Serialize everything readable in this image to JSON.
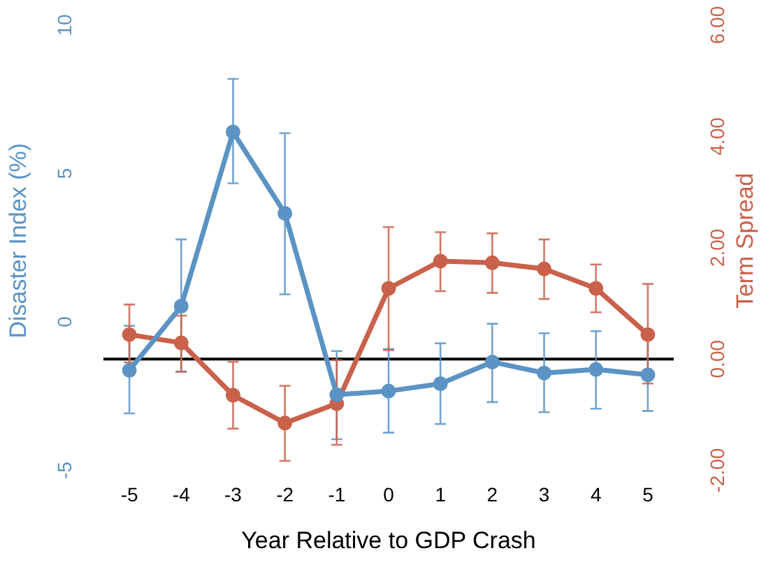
{
  "chart_data": {
    "type": "line",
    "xlabel": "Year Relative to GDP Crash",
    "ylabel": "Disaster Index (%)",
    "y2label": "Term Spread",
    "categories": [
      "-5",
      "-4",
      "-3",
      "-2",
      "-1",
      "0",
      "1",
      "2",
      "3",
      "4",
      "5"
    ],
    "series": [
      {
        "color": "#5b93c4",
        "values": [
          -1.63,
          0.53,
          6.4,
          3.66,
          -2.45,
          -2.33,
          -2.08,
          -1.35,
          -1.72,
          -1.6,
          -1.78
        ],
        "errors": [
          [
            -3.08,
            -0.13
          ],
          [
            -1.67,
            2.78
          ],
          [
            4.67,
            8.19
          ],
          [
            0.93,
            6.36
          ],
          [
            -3.95,
            -0.98
          ],
          [
            -3.73,
            -0.91
          ],
          [
            -3.44,
            -0.72
          ],
          [
            -2.7,
            -0.06
          ],
          [
            -3.04,
            -0.38
          ],
          [
            -2.92,
            -0.31
          ],
          [
            -3.0,
            -0.48
          ]
        ]
      },
      {
        "color": "#c9614b",
        "axis": "y2",
        "values": [
          0.44,
          0.29,
          -0.65,
          -1.15,
          -0.8,
          1.27,
          1.76,
          1.73,
          1.62,
          1.27,
          0.44
        ],
        "errors": [
          [
            -0.06,
            0.98
          ],
          [
            -0.23,
            0.78
          ],
          [
            -1.25,
            -0.05
          ],
          [
            -1.83,
            -0.48
          ],
          [
            -1.54,
            -0.02
          ],
          [
            0.16,
            2.37
          ],
          [
            1.22,
            2.28
          ],
          [
            1.19,
            2.26
          ],
          [
            1.08,
            2.15
          ],
          [
            0.84,
            1.7
          ],
          [
            -0.44,
            1.35
          ]
        ]
      }
    ],
    "ylim": [
      -5,
      10
    ],
    "yticks": [
      -5,
      0,
      5,
      10
    ],
    "y2lim": [
      -2,
      6
    ],
    "y2ticks": [
      {
        "value": -2,
        "label": "-2.00"
      },
      {
        "value": 0,
        "label": "0.00"
      },
      {
        "value": 2,
        "label": "2.00"
      },
      {
        "value": 4,
        "label": "4.00"
      },
      {
        "value": 6,
        "label": "6.00"
      }
    ],
    "ref_lines": [
      {
        "axis": "y2",
        "value": 0,
        "color": "#000000"
      }
    ],
    "marker": "circle",
    "line_style": "solid",
    "grid": false,
    "legend": false
  }
}
